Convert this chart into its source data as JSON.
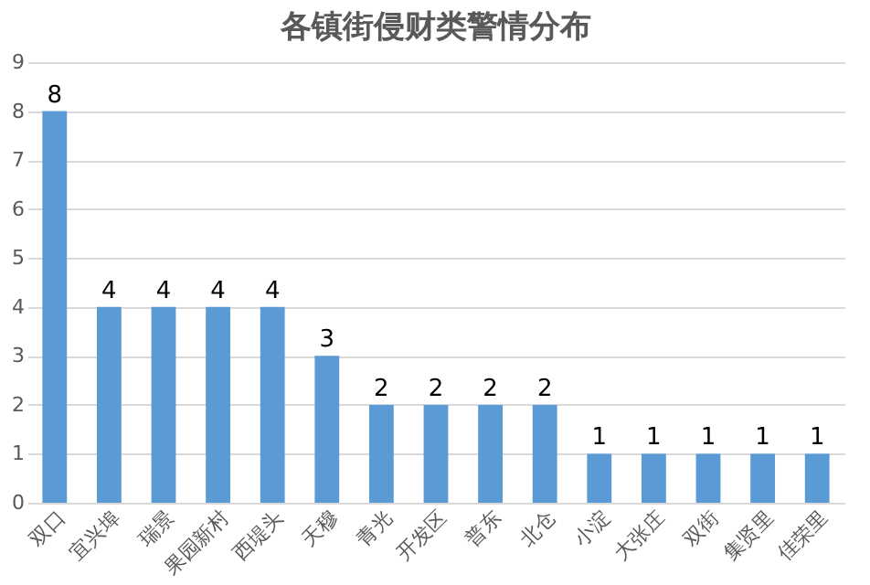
{
  "chart_data": {
    "type": "bar",
    "title": "各镇街侵财类警情分布",
    "categories": [
      "双口",
      "宜兴埠",
      "瑞景",
      "果园新村",
      "西堤头",
      "天穆",
      "青光",
      "开发区",
      "普东",
      "北仓",
      "小淀",
      "大张庄",
      "双街",
      "集贤里",
      "佳荣里"
    ],
    "values": [
      8,
      4,
      4,
      4,
      4,
      3,
      2,
      2,
      2,
      2,
      1,
      1,
      1,
      1,
      1
    ],
    "color": "#5b9bd5",
    "ylim": [
      0,
      9
    ],
    "yticks": [
      0,
      1,
      2,
      3,
      4,
      5,
      6,
      7,
      8,
      9
    ],
    "grid": "y",
    "data_labels": true
  }
}
